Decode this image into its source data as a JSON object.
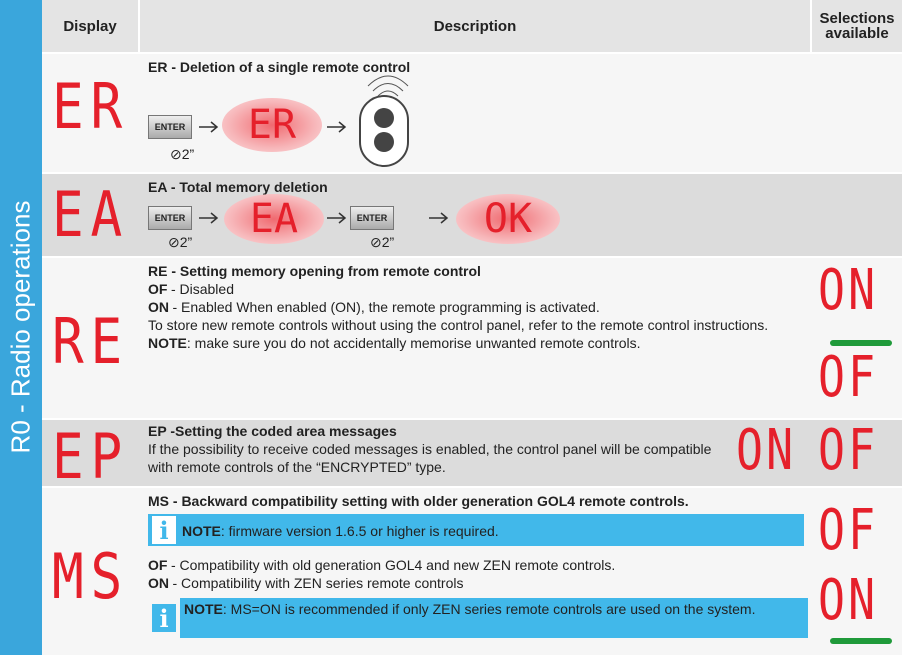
{
  "side_label": "R0 - Radio operations",
  "header": {
    "display": "Display",
    "description": "Description",
    "selections": "Selections available"
  },
  "rows": [
    {
      "display": "ER",
      "title": "ER - Deletion of a single remote control",
      "button": "ENTER",
      "time": "2”",
      "screen": "ER"
    },
    {
      "display": "EA",
      "title": "EA - Total memory deletion",
      "button": "ENTER",
      "time": "2”",
      "screen": "EA",
      "button2": "ENTER",
      "time2": "2”",
      "screen2": "OK"
    },
    {
      "display": "RE",
      "title": "RE - Setting memory opening from remote control",
      "lines": [
        {
          "term": "OF",
          "text": "- Disabled"
        },
        {
          "term": "ON",
          "text": "- Enabled When enabled (ON), the remote programming is activated."
        },
        {
          "text": "To store new remote controls without using the control panel, refer to the remote control instructions."
        },
        {
          "term": "NOTE",
          "text": ": make sure you do not accidentally memorise unwanted remote controls."
        }
      ],
      "selections": [
        "ON",
        "OF"
      ]
    },
    {
      "display": "EP",
      "title": "EP -Setting the coded area messages",
      "text": "If the possibility to receive coded messages is enabled, the control panel will be compatible with remote controls of the “ENCRYPTED” type.",
      "selections": [
        "ON",
        "OF"
      ]
    },
    {
      "display": "MS",
      "title": "MS - Backward compatibility setting with older generation GOL4 remote controls.",
      "note1": {
        "term": "NOTE",
        "text": ": firmware version 1.6.5 or higher is required."
      },
      "lines": [
        {
          "term": "OF",
          "text": "- Compatibility with old generation GOL4 and new ZEN remote controls."
        },
        {
          "term": "ON",
          "text": "- Compatibility with ZEN series remote controls"
        }
      ],
      "note2": {
        "term": "NOTE",
        "text": ": MS=ON is recommended if only ZEN series remote controls are used on the system."
      },
      "selections": [
        "OF",
        "ON"
      ]
    }
  ]
}
